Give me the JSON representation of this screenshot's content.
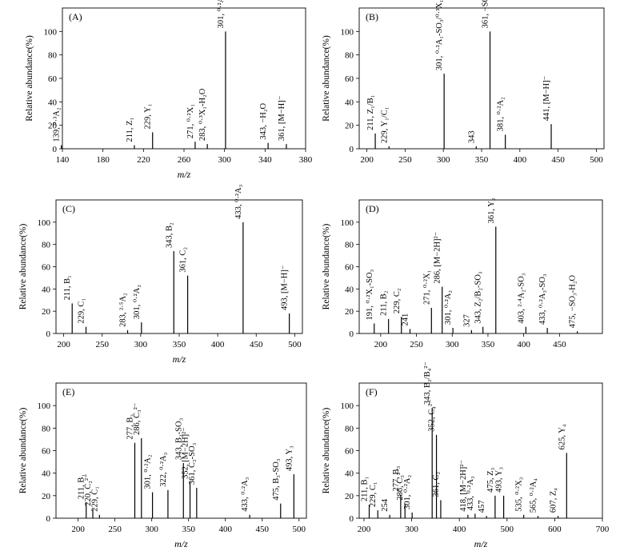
{
  "chart_data": [
    {
      "type": "bar",
      "panel_label": "(A)",
      "xlabel": "m/z",
      "ylabel": "Relative abundance(%)",
      "xlim": [
        140,
        380
      ],
      "ylim": [
        0,
        120
      ],
      "xticks": [
        140,
        180,
        220,
        260,
        300,
        340,
        380
      ],
      "yticks": [
        0,
        20,
        40,
        60,
        80,
        100
      ],
      "series": [
        {
          "x": [
            139,
            211,
            229,
            271,
            283,
            301,
            343,
            361
          ],
          "values": [
            3,
            3,
            14,
            6,
            4,
            100,
            5,
            4
          ],
          "labels": [
            "139, ⁰·³A₂",
            "211, Z₁",
            "229, Y₁",
            "271, ⁰·²X₁",
            "283, ⁰·³X₁-H₂O",
            "301, ⁰·²A₁/⁰·³X₁",
            "343, −H₂O",
            "361, [M−H]⁻"
          ]
        }
      ],
      "structure": "disaccharide with cleavage sites"
    },
    {
      "type": "bar",
      "panel_label": "(B)",
      "xlabel": "",
      "ylabel": "Relative abundance(%)",
      "xlim": [
        190,
        510
      ],
      "ylim": [
        0,
        120
      ],
      "xticks": [
        200,
        250,
        300,
        350,
        400,
        450,
        500
      ],
      "yticks": [
        0,
        20,
        40,
        60,
        80,
        100
      ],
      "series": [
        {
          "x": [
            211,
            229,
            301,
            343,
            361,
            381,
            441
          ],
          "values": [
            13,
            2,
            64,
            2,
            100,
            12,
            21
          ],
          "labels": [
            "211, Z₁/B₁",
            "229, Y₁/C₁",
            "301, ⁰·²A₁-SO₃/⁰·³X₁",
            "343",
            "361, −SO₃",
            "381, ⁰·²A₂",
            "441, [M−H]⁻"
          ]
        }
      ]
    },
    {
      "type": "bar",
      "panel_label": "(C)",
      "xlabel": "m/z",
      "ylabel": "Relative abundance(%)",
      "xlim": [
        190,
        510
      ],
      "ylim": [
        0,
        120
      ],
      "xticks": [
        200,
        250,
        300,
        350,
        400,
        450,
        500
      ],
      "yticks": [
        0,
        20,
        40,
        60,
        80,
        100
      ],
      "series": [
        {
          "x": [
            211,
            229,
            283,
            301,
            343,
            361,
            433,
            493
          ],
          "values": [
            27,
            6,
            3,
            10,
            74,
            52,
            100,
            18
          ],
          "labels": [
            "211, B₁",
            "229, C₁",
            "283, ²·⁵A₂",
            "301, ⁰·²A₂",
            "343, B₂",
            "361, C₂",
            "433, ⁰·²A₃",
            "493, [M−H]⁻"
          ]
        }
      ]
    },
    {
      "type": "bar",
      "panel_label": "(D)",
      "xlabel": "",
      "ylabel": "Relative abundance(%)",
      "xlim": [
        170,
        510
      ],
      "ylim": [
        0,
        120
      ],
      "xticks": [
        200,
        250,
        300,
        350,
        400,
        450
      ],
      "yticks": [
        0,
        20,
        40,
        60,
        80,
        100
      ],
      "series": [
        {
          "x": [
            191,
            211,
            229,
            241,
            271,
            286,
            301,
            327,
            343,
            361,
            403,
            433,
            475
          ],
          "values": [
            9,
            13,
            15,
            4,
            23,
            42,
            5,
            3,
            6,
            96,
            6,
            5,
            2
          ],
          "labels": [
            "191, ⁰·²X₁-SO₃",
            "211, B₂",
            "229, C₂",
            "241",
            "271, ⁰·²X₁",
            "286, [M−2H]²⁻",
            "301, ⁰·²A₂",
            "327",
            "343, Z₂/B₂-SO₃",
            "361, Y₂",
            "403, ²·⁴A₂-SO₃",
            "433, ⁰·²A₃-SO₃",
            "475, −SO₃-H₂O"
          ]
        }
      ]
    },
    {
      "type": "bar",
      "panel_label": "(E)",
      "xlabel": "m/z",
      "ylabel": "Relative abundance(%)",
      "xlim": [
        170,
        510
      ],
      "ylim": [
        0,
        120
      ],
      "xticks": [
        200,
        250,
        300,
        350,
        400,
        450,
        500
      ],
      "yticks": [
        0,
        20,
        40,
        60,
        80,
        100
      ],
      "series": [
        {
          "x": [
            211,
            220,
            229,
            277,
            286,
            301,
            322,
            343,
            352,
            361,
            433,
            475,
            493
          ],
          "values": [
            14,
            8,
            3,
            67,
            71,
            23,
            25,
            49,
            32,
            27,
            3,
            13,
            39
          ],
          "labels": [
            "211, B₁",
            "220, C₂²⁻",
            "229, C₁",
            "277, B₃",
            "286, C₃²⁻",
            "301, ⁰·²A₂",
            "322, ⁰·²A₃",
            "343, B₂-SO₃",
            "352, [M−2H]²⁻",
            "361, C₂-SO₃",
            "433, ⁰·²A₃",
            "475, B₃-SO₃",
            "493, Y₃"
          ]
        }
      ]
    },
    {
      "type": "bar",
      "panel_label": "(F)",
      "xlabel": "m/z",
      "ylabel": "Relative abundance(%)",
      "xlim": [
        190,
        700
      ],
      "ylim": [
        0,
        120
      ],
      "xticks": [
        200,
        300,
        400,
        500,
        600,
        700
      ],
      "yticks": [
        0,
        20,
        40,
        60,
        80,
        100
      ],
      "series": [
        {
          "x": [
            211,
            229,
            254,
            277,
            286,
            301,
            343,
            352,
            361,
            418,
            433,
            457,
            475,
            493,
            535,
            565,
            607,
            625
          ],
          "values": [
            12,
            7,
            3,
            21,
            13,
            5,
            98,
            74,
            16,
            3,
            4,
            2,
            20,
            20,
            3,
            2,
            2,
            58
          ],
          "labels": [
            "211, B₁",
            "229, C₁",
            "254",
            "277, B₃",
            "286, C₃²⁻",
            "301, ⁰·²A₂",
            "343, B₂/B₄²⁻",
            "352, C₄²⁻",
            "361, C₂",
            "418, [M−2H]²⁻",
            "433, ⁰·²A₃",
            "457",
            "475, Z₃",
            "493, Y₃",
            "535, ⁰·²X₃",
            "565, ⁰·²A₄",
            "607, Z₄",
            "625, Y₄"
          ]
        }
      ]
    }
  ]
}
